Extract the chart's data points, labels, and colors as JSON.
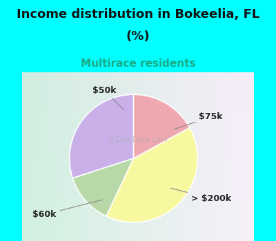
{
  "title_line1": "Income distribution in Bokeelia, FL",
  "title_line2": "(%)",
  "subtitle": "Multirace residents",
  "labels": [
    "$75k",
    "> $200k",
    "$60k",
    "$50k"
  ],
  "sizes": [
    30,
    13,
    40,
    17
  ],
  "colors": [
    "#c9b0e8",
    "#b8d8a8",
    "#f8f8a0",
    "#f0a8b0"
  ],
  "startangle": 90,
  "background_color": "#00ffff",
  "chart_bg": "#cceedd",
  "title_fontsize": 13,
  "subtitle_fontsize": 11,
  "subtitle_color": "#1aaa88",
  "label_fontsize": 9,
  "watermark": " City-Data.com"
}
